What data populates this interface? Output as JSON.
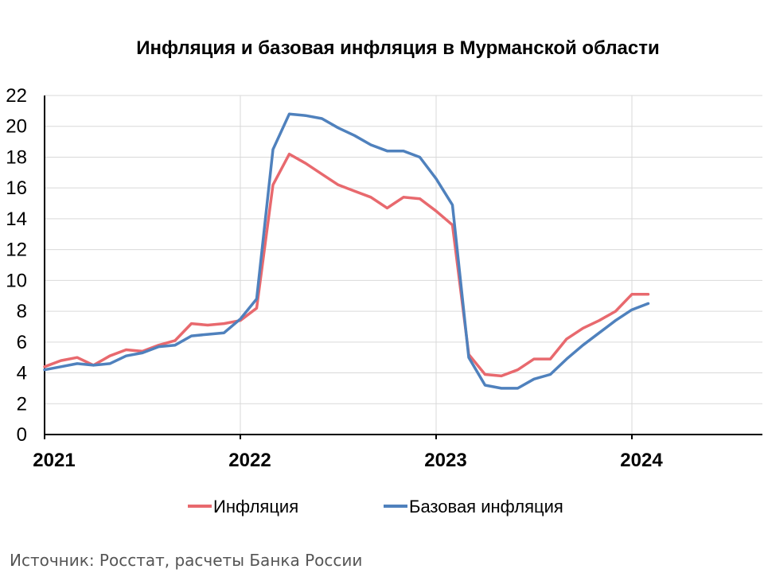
{
  "chart_data": {
    "type": "line",
    "title": "Инфляция и базовая инфляция в Мурманской области",
    "xlabel": "",
    "ylabel": "",
    "ylim": [
      0,
      22
    ],
    "yticks": [
      0,
      2,
      4,
      6,
      8,
      10,
      12,
      14,
      16,
      18,
      20,
      22
    ],
    "xlim": [
      0,
      44
    ],
    "xticks": [
      {
        "value": 0,
        "label": "2021"
      },
      {
        "value": 12,
        "label": "2022"
      },
      {
        "value": 24,
        "label": "2023"
      },
      {
        "value": 36,
        "label": "2024"
      }
    ],
    "grid": true,
    "legend_position": "bottom",
    "x": [
      0,
      1,
      2,
      3,
      4,
      5,
      6,
      7,
      8,
      9,
      10,
      11,
      12,
      13,
      14,
      15,
      16,
      17,
      18,
      19,
      20,
      21,
      22,
      23,
      24,
      25,
      26,
      27,
      28,
      29,
      30,
      31,
      32,
      33,
      34,
      35,
      36,
      37
    ],
    "series": [
      {
        "name": "Инфляция",
        "color": "#e8696e",
        "values": [
          4.4,
          4.8,
          5.0,
          4.5,
          5.1,
          5.5,
          5.4,
          5.8,
          6.1,
          7.2,
          7.1,
          7.2,
          7.4,
          8.2,
          16.2,
          18.2,
          17.6,
          16.9,
          16.2,
          15.8,
          15.4,
          14.7,
          15.4,
          15.3,
          14.5,
          13.6,
          5.2,
          3.9,
          3.8,
          4.2,
          4.9,
          4.9,
          6.2,
          6.9,
          7.4,
          8.0,
          9.1,
          9.1
        ]
      },
      {
        "name": "Базовая инфляция",
        "color": "#4f81bd",
        "values": [
          4.2,
          4.4,
          4.6,
          4.5,
          4.6,
          5.1,
          5.3,
          5.7,
          5.8,
          6.4,
          6.5,
          6.6,
          7.5,
          8.8,
          18.5,
          20.8,
          20.7,
          20.5,
          19.9,
          19.4,
          18.8,
          18.4,
          18.4,
          18.0,
          16.6,
          14.9,
          5.0,
          3.2,
          3.0,
          3.0,
          3.6,
          3.9,
          4.9,
          5.8,
          6.6,
          7.4,
          8.1,
          8.5
        ]
      }
    ]
  },
  "source_text": "Источник: Росстат, расчеты Банка России"
}
